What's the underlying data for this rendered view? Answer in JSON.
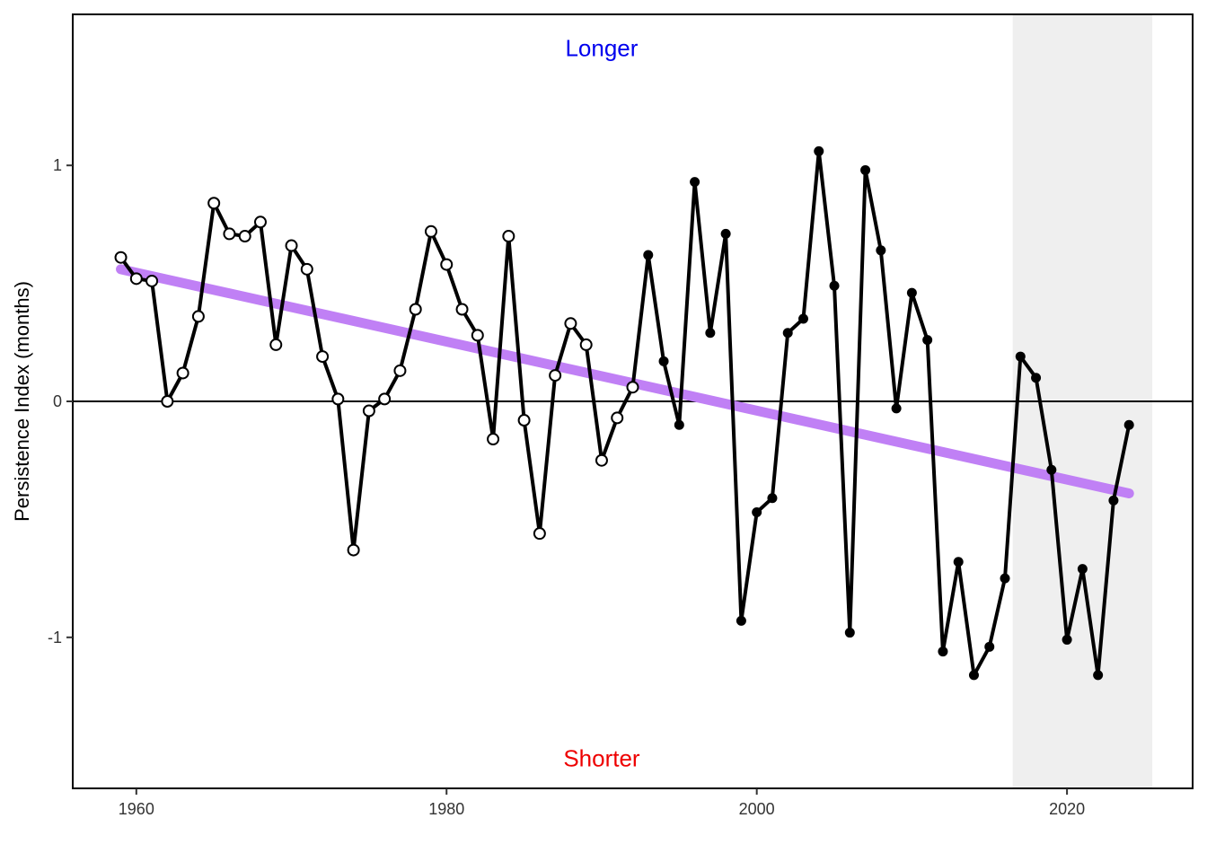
{
  "chart_data": {
    "type": "line",
    "title": "",
    "xlabel": "",
    "ylabel": "Persistence Index (months)",
    "xlim": [
      1955.9,
      2028.1
    ],
    "ylim": [
      -1.64,
      1.64
    ],
    "x_ticks": [
      1960,
      1980,
      2000,
      2020
    ],
    "y_ticks": [
      -1,
      0,
      1
    ],
    "x_tick_labels": [
      "1960",
      "1980",
      "2000",
      "2020"
    ],
    "y_tick_labels": [
      "-1",
      "0",
      "1"
    ],
    "grid": false,
    "zero_line": 0,
    "shaded_period": [
      2016.5,
      2025.5
    ],
    "colors": {
      "series": "#000000",
      "trend": "#c080f5",
      "shade": "#efefef",
      "longer": "#0000ee",
      "shorter": "#ee0000"
    },
    "annotations": [
      {
        "key": "longer",
        "text": "Longer",
        "x": 1990,
        "y": 1.49,
        "color": "#0000ee"
      },
      {
        "key": "shorter",
        "text": "Shorter",
        "x": 1990,
        "y": -1.52,
        "color": "#ee0000"
      }
    ],
    "trend": {
      "x": [
        1959,
        2024
      ],
      "y": [
        0.56,
        -0.39
      ]
    },
    "open_marker_until": 1992,
    "series": [
      {
        "x": [
          1959,
          1960,
          1961,
          1962,
          1963,
          1964,
          1965,
          1966,
          1967,
          1968,
          1969,
          1970,
          1971,
          1972,
          1973,
          1974,
          1975,
          1976,
          1977,
          1978,
          1979,
          1980,
          1981,
          1982,
          1983,
          1984,
          1985,
          1986,
          1987,
          1988,
          1989,
          1990,
          1991,
          1992,
          1993,
          1994,
          1995,
          1996,
          1997,
          1998,
          1999,
          2000,
          2001,
          2002,
          2003,
          2004,
          2005,
          2006,
          2007,
          2008,
          2009,
          2010,
          2011,
          2012,
          2013,
          2014,
          2015,
          2016,
          2017,
          2018,
          2019,
          2020,
          2021,
          2022,
          2023,
          2024
        ],
        "values": [
          0.61,
          0.52,
          0.51,
          0.0,
          0.12,
          0.36,
          0.84,
          0.71,
          0.7,
          0.76,
          0.24,
          0.66,
          0.56,
          0.19,
          0.01,
          -0.63,
          -0.04,
          0.01,
          0.13,
          0.39,
          0.72,
          0.58,
          0.39,
          0.28,
          -0.16,
          0.7,
          -0.08,
          -0.56,
          0.11,
          0.33,
          0.24,
          -0.25,
          -0.07,
          0.06,
          0.62,
          0.17,
          -0.1,
          0.93,
          0.29,
          0.71,
          -0.93,
          -0.47,
          -0.41,
          0.29,
          0.35,
          1.06,
          0.49,
          -0.98,
          0.98,
          0.64,
          -0.03,
          0.46,
          0.26,
          -1.06,
          -0.68,
          -1.16,
          -1.04,
          -0.75,
          0.19,
          0.1,
          -0.29,
          -1.01,
          -0.71,
          -1.16,
          -0.42,
          -0.1
        ]
      }
    ]
  }
}
